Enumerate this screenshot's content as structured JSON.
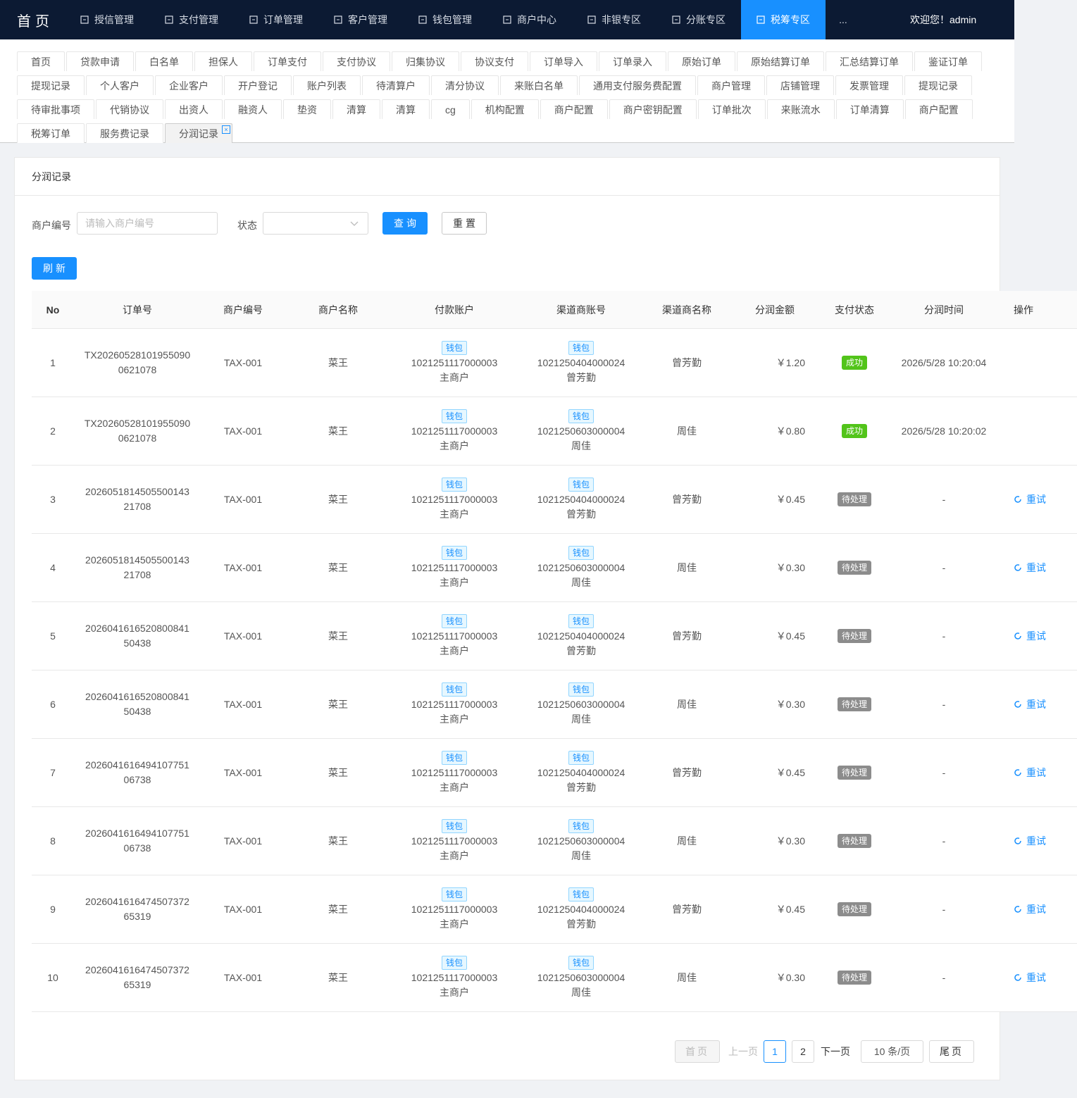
{
  "nav": {
    "brand": "首页",
    "items": [
      "授信管理",
      "支付管理",
      "订单管理",
      "客户管理",
      "钱包管理",
      "商户中心",
      "非银专区",
      "分账专区",
      "税筹专区"
    ],
    "active": 8,
    "more": "...",
    "welcome": "欢迎您！admin"
  },
  "tabs": {
    "rows": [
      [
        "首页",
        "贷款申请",
        "白名单",
        "担保人",
        "订单支付",
        "支付协议",
        "归集协议",
        "协议支付",
        "订单导入",
        "订单录入",
        "原始订单",
        "原始结算订单",
        "汇总结算订单",
        "鉴证订单"
      ],
      [
        "提现记录",
        "个人客户",
        "企业客户",
        "开户登记",
        "账户列表",
        "待清算户",
        "清分协议",
        "来账白名单",
        "通用支付服务费配置",
        "商户管理",
        "店铺管理",
        "发票管理",
        "提现记录"
      ],
      [
        "待审批事项",
        "代销协议",
        "出资人",
        "融资人",
        "垫资",
        "清算",
        "清算",
        "cg",
        "机构配置",
        "商户配置",
        "商户密钥配置",
        "订单批次",
        "来账流水",
        "订单清算",
        "商户配置"
      ],
      [
        "税筹订单",
        "服务费记录",
        "分润记录"
      ]
    ],
    "active": [
      3,
      2
    ]
  },
  "card": {
    "title": "分润记录"
  },
  "form": {
    "merchant_label": "商户编号",
    "merchant_placeholder": "请输入商户编号",
    "status_label": "状态",
    "query": "查询",
    "reset": "重置",
    "refresh": "刷新"
  },
  "table": {
    "columns": [
      "No",
      "订单号",
      "商户编号",
      "商户名称",
      "付款账户",
      "渠道商账号",
      "渠道商名称",
      "分润金额",
      "支付状态",
      "分润时间",
      "操作"
    ],
    "rows": [
      [
        "1",
        "TX202605281019550900621078",
        "TAX-001",
        "菜王",
        "钱包",
        "1021251117000003",
        "主商户",
        "钱包",
        "1021250404000024",
        "曾芳勤",
        "曾芳勤",
        "￥1.20",
        "成功",
        "2026/5/28 10:20:04",
        ""
      ],
      [
        "2",
        "TX202605281019550900621078",
        "TAX-001",
        "菜王",
        "钱包",
        "1021251117000003",
        "主商户",
        "钱包",
        "1021250603000004",
        "周佳",
        "周佳",
        "￥0.80",
        "成功",
        "2026/5/28 10:20:02",
        ""
      ],
      [
        "3",
        "202605181450550014321708",
        "TAX-001",
        "菜王",
        "钱包",
        "1021251117000003",
        "主商户",
        "钱包",
        "1021250404000024",
        "曾芳勤",
        "曾芳勤",
        "￥0.45",
        "待处理",
        "-",
        "重试"
      ],
      [
        "4",
        "202605181450550014321708",
        "TAX-001",
        "菜王",
        "钱包",
        "1021251117000003",
        "主商户",
        "钱包",
        "1021250603000004",
        "周佳",
        "周佳",
        "￥0.30",
        "待处理",
        "-",
        "重试"
      ],
      [
        "5",
        "202604161652080084150438",
        "TAX-001",
        "菜王",
        "钱包",
        "1021251117000003",
        "主商户",
        "钱包",
        "1021250404000024",
        "曾芳勤",
        "曾芳勤",
        "￥0.45",
        "待处理",
        "-",
        "重试"
      ],
      [
        "6",
        "202604161652080084150438",
        "TAX-001",
        "菜王",
        "钱包",
        "1021251117000003",
        "主商户",
        "钱包",
        "1021250603000004",
        "周佳",
        "周佳",
        "￥0.30",
        "待处理",
        "-",
        "重试"
      ],
      [
        "7",
        "202604161649410775106738",
        "TAX-001",
        "菜王",
        "钱包",
        "1021251117000003",
        "主商户",
        "钱包",
        "1021250404000024",
        "曾芳勤",
        "曾芳勤",
        "￥0.45",
        "待处理",
        "-",
        "重试"
      ],
      [
        "8",
        "202604161649410775106738",
        "TAX-001",
        "菜王",
        "钱包",
        "1021251117000003",
        "主商户",
        "钱包",
        "1021250603000004",
        "周佳",
        "周佳",
        "￥0.30",
        "待处理",
        "-",
        "重试"
      ],
      [
        "9",
        "202604161647450737265319",
        "TAX-001",
        "菜王",
        "钱包",
        "1021251117000003",
        "主商户",
        "钱包",
        "1021250404000024",
        "曾芳勤",
        "曾芳勤",
        "￥0.45",
        "待处理",
        "-",
        "重试"
      ],
      [
        "10",
        "202604161647450737265319",
        "TAX-001",
        "菜王",
        "钱包",
        "1021251117000003",
        "主商户",
        "钱包",
        "1021250603000004",
        "周佳",
        "周佳",
        "￥0.30",
        "待处理",
        "-",
        "重试"
      ]
    ]
  },
  "pagination": {
    "first": "首页",
    "prev": "上一页",
    "pages": [
      "1",
      "2"
    ],
    "current": 0,
    "next": "下一页",
    "size": "10 条/页",
    "last": "尾页"
  }
}
